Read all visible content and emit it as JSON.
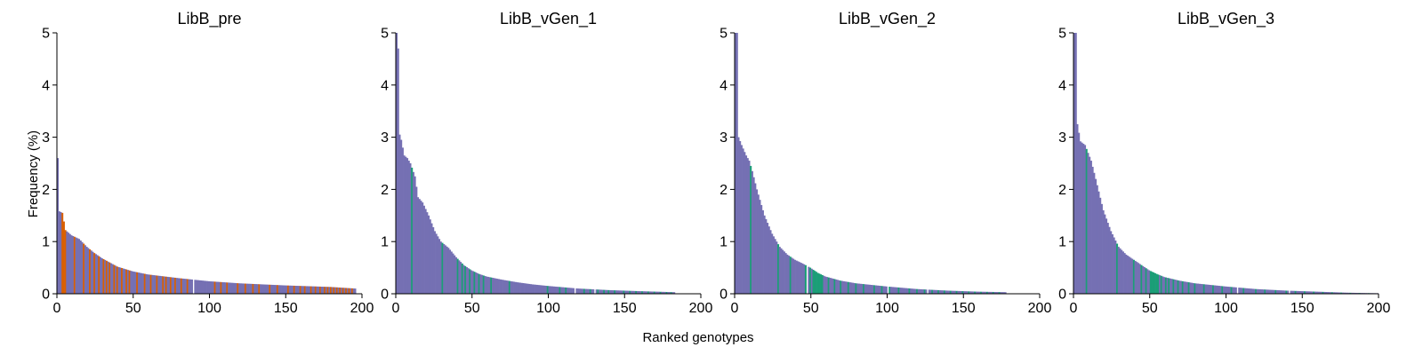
{
  "figure": {
    "xlabel": "Ranked genotypes",
    "ylabel": "Frequency (%)"
  },
  "chart_data": [
    {
      "type": "bar",
      "title": "LibB_pre",
      "xlabel": "Ranked genotypes",
      "ylabel": "Frequency (%)",
      "xlim": [
        0,
        200
      ],
      "ylim": [
        0,
        5
      ],
      "xticks": [
        0,
        50,
        100,
        150,
        200
      ],
      "yticks": [
        0,
        1,
        2,
        3,
        4,
        5
      ],
      "n_bars": 196,
      "colors": {
        "base": "#7570b3",
        "highlight": "#d95f02"
      },
      "curve": [
        [
          1,
          2.6
        ],
        [
          2,
          1.58
        ],
        [
          4,
          1.55
        ],
        [
          6,
          1.22
        ],
        [
          10,
          1.12
        ],
        [
          15,
          1.05
        ],
        [
          20,
          0.9
        ],
        [
          25,
          0.78
        ],
        [
          30,
          0.68
        ],
        [
          40,
          0.52
        ],
        [
          50,
          0.43
        ],
        [
          60,
          0.37
        ],
        [
          80,
          0.3
        ],
        [
          100,
          0.24
        ],
        [
          120,
          0.2
        ],
        [
          150,
          0.16
        ],
        [
          180,
          0.13
        ],
        [
          196,
          0.1
        ]
      ],
      "highlight_ranks": [
        4,
        5,
        6,
        12,
        18,
        22,
        25,
        28,
        31,
        33,
        35,
        38,
        40,
        43,
        46,
        48,
        53,
        58,
        62,
        66,
        70,
        72,
        75,
        78,
        82,
        86,
        104,
        108,
        112,
        119,
        124,
        129,
        133,
        140,
        145,
        152,
        156,
        160,
        163,
        167,
        170,
        173,
        176,
        178,
        180,
        182,
        184,
        186,
        188,
        190,
        192,
        194
      ],
      "gap_ranks": [
        90
      ]
    },
    {
      "type": "bar",
      "title": "LibB_vGen_1",
      "xlabel": "Ranked genotypes",
      "ylabel": "Frequency (%)",
      "xlim": [
        0,
        200
      ],
      "ylim": [
        0,
        5
      ],
      "xticks": [
        0,
        50,
        100,
        150,
        200
      ],
      "yticks": [
        0,
        1,
        2,
        3,
        4,
        5
      ],
      "n_bars": 183,
      "colors": {
        "base": "#7570b3",
        "highlight": "#1b9e77"
      },
      "curve": [
        [
          1,
          5.0
        ],
        [
          2,
          4.7
        ],
        [
          3,
          3.05
        ],
        [
          4,
          2.95
        ],
        [
          6,
          2.65
        ],
        [
          8,
          2.6
        ],
        [
          10,
          2.5
        ],
        [
          13,
          2.25
        ],
        [
          15,
          1.85
        ],
        [
          18,
          1.75
        ],
        [
          22,
          1.5
        ],
        [
          26,
          1.2
        ],
        [
          30,
          1.0
        ],
        [
          35,
          0.88
        ],
        [
          40,
          0.7
        ],
        [
          45,
          0.55
        ],
        [
          50,
          0.45
        ],
        [
          55,
          0.38
        ],
        [
          60,
          0.33
        ],
        [
          70,
          0.27
        ],
        [
          80,
          0.22
        ],
        [
          90,
          0.18
        ],
        [
          100,
          0.15
        ],
        [
          120,
          0.1
        ],
        [
          140,
          0.07
        ],
        [
          160,
          0.05
        ],
        [
          183,
          0.03
        ]
      ],
      "highlight_ranks": [
        11,
        31,
        41,
        44,
        46,
        49,
        52,
        55,
        58,
        63,
        75,
        100,
        108,
        112,
        118,
        124,
        128,
        133,
        137,
        140,
        144,
        150,
        154,
        158,
        162,
        166,
        170,
        174,
        178,
        181
      ],
      "gap_ranks": [
        118,
        131
      ]
    },
    {
      "type": "bar",
      "title": "LibB_vGen_2",
      "xlabel": "Ranked genotypes",
      "ylabel": "Frequency (%)",
      "xlim": [
        0,
        200
      ],
      "ylim": [
        0,
        5
      ],
      "xticks": [
        0,
        50,
        100,
        150,
        200
      ],
      "yticks": [
        0,
        1,
        2,
        3,
        4,
        5
      ],
      "n_bars": 178,
      "colors": {
        "base": "#7570b3",
        "highlight": "#1b9e77"
      },
      "curve": [
        [
          1,
          5.0
        ],
        [
          2,
          5.0
        ],
        [
          3,
          3.0
        ],
        [
          5,
          2.85
        ],
        [
          8,
          2.65
        ],
        [
          10,
          2.55
        ],
        [
          12,
          2.35
        ],
        [
          15,
          2.0
        ],
        [
          20,
          1.5
        ],
        [
          25,
          1.15
        ],
        [
          30,
          0.9
        ],
        [
          35,
          0.75
        ],
        [
          40,
          0.65
        ],
        [
          45,
          0.58
        ],
        [
          50,
          0.5
        ],
        [
          55,
          0.4
        ],
        [
          60,
          0.33
        ],
        [
          70,
          0.25
        ],
        [
          80,
          0.2
        ],
        [
          90,
          0.17
        ],
        [
          100,
          0.14
        ],
        [
          120,
          0.09
        ],
        [
          140,
          0.06
        ],
        [
          160,
          0.04
        ],
        [
          178,
          0.03
        ]
      ],
      "highlight_ranks": [
        11,
        29,
        37,
        47,
        50,
        52,
        53,
        54,
        55,
        56,
        57,
        58,
        62,
        66,
        70,
        75,
        80,
        85,
        92,
        97,
        102,
        108,
        115,
        120,
        125,
        130,
        134,
        138,
        142,
        146,
        150,
        154,
        158,
        162,
        166,
        170,
        174
      ],
      "gap_ranks": [
        48,
        101,
        127
      ]
    },
    {
      "type": "bar",
      "title": "LibB_vGen_3",
      "xlabel": "Ranked genotypes",
      "ylabel": "Frequency (%)",
      "xlim": [
        0,
        200
      ],
      "ylim": [
        0,
        5
      ],
      "xticks": [
        0,
        50,
        100,
        150,
        200
      ],
      "yticks": [
        0,
        1,
        2,
        3,
        4,
        5
      ],
      "n_bars": 200,
      "colors": {
        "base": "#7570b3",
        "highlight": "#1b9e77"
      },
      "curve": [
        [
          1,
          5.0
        ],
        [
          2,
          5.0
        ],
        [
          3,
          3.25
        ],
        [
          5,
          2.92
        ],
        [
          8,
          2.85
        ],
        [
          10,
          2.7
        ],
        [
          12,
          2.55
        ],
        [
          15,
          2.2
        ],
        [
          20,
          1.6
        ],
        [
          25,
          1.2
        ],
        [
          30,
          0.9
        ],
        [
          35,
          0.75
        ],
        [
          40,
          0.65
        ],
        [
          45,
          0.55
        ],
        [
          50,
          0.45
        ],
        [
          55,
          0.38
        ],
        [
          60,
          0.32
        ],
        [
          70,
          0.25
        ],
        [
          80,
          0.2
        ],
        [
          90,
          0.17
        ],
        [
          100,
          0.14
        ],
        [
          120,
          0.09
        ],
        [
          140,
          0.06
        ],
        [
          160,
          0.04
        ],
        [
          180,
          0.02
        ],
        [
          200,
          0.01
        ]
      ],
      "highlight_ranks": [
        9,
        29,
        40,
        45,
        48,
        51,
        52,
        53,
        54,
        55,
        56,
        58,
        61,
        63,
        66,
        69,
        72,
        76,
        80,
        86,
        92,
        98,
        104,
        112,
        120,
        126,
        133,
        140,
        146,
        152,
        158,
        164,
        170,
        176,
        182,
        188,
        194
      ],
      "gap_ranks": [
        108,
        142
      ]
    }
  ]
}
